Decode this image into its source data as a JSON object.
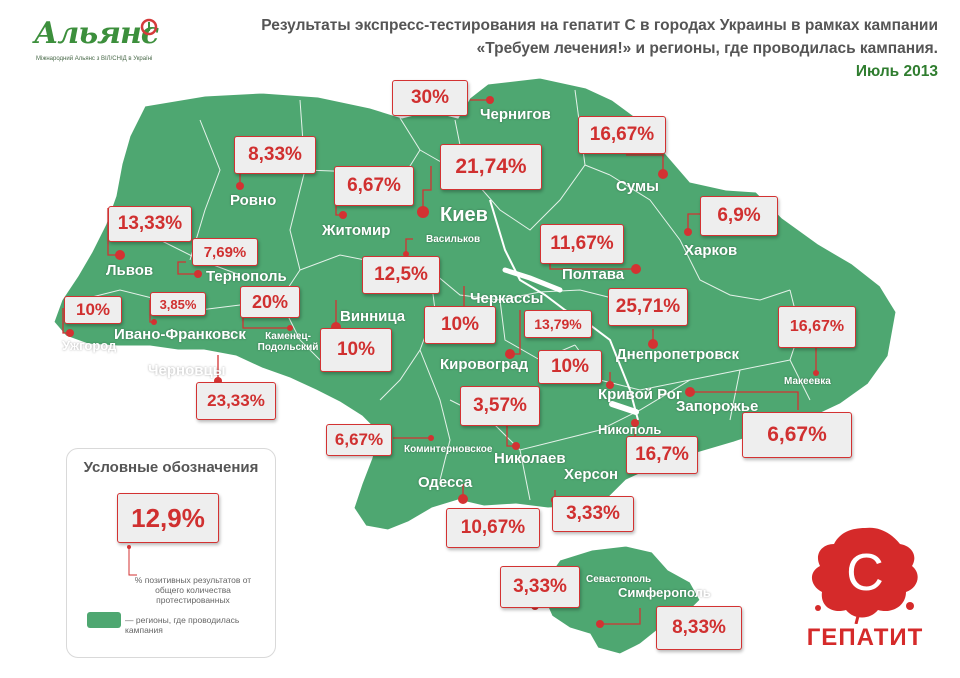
{
  "logo": {
    "name": "Альянс",
    "subtitle": "Міжнародний Альянс з ВІЛ/СНІД в Україні"
  },
  "header": {
    "line1": "Результаты экспресс-тестирования на гепатит С в городах Украины в рамках кампании",
    "line2": "«Требуем лечения!» и регионы, где проводилась кампания.",
    "line3": "Июль 2013"
  },
  "colors": {
    "region_fill": "#4ea771",
    "accent_red": "#d33232",
    "label_box": "#eeeeee",
    "header_green": "#2f7d2f"
  },
  "cities": {
    "chernigov": {
      "name": "Чернигов",
      "value": "30%"
    },
    "sumy": {
      "name": "Сумы",
      "value": "16,67%"
    },
    "rovno": {
      "name": "Ровно",
      "value": "8,33%"
    },
    "zhitomir": {
      "name": "Житомир",
      "value": "6,67%"
    },
    "kiev": {
      "name": "Киев",
      "value": "21,74%"
    },
    "kharkov": {
      "name": "Харков",
      "value": "6,9%"
    },
    "lvov": {
      "name": "Львов",
      "value": "13,33%"
    },
    "ternopol": {
      "name": "Тернополь",
      "value": "7,69%"
    },
    "vasilkov": {
      "name": "Васильков",
      "value": "12,5%"
    },
    "poltava": {
      "name": "Полтава",
      "value": "11,67%"
    },
    "uzhgorod": {
      "name": "Ужгород",
      "value": "10%"
    },
    "ivano": {
      "name": "Ивано-Франковск",
      "value": "3,85%"
    },
    "kamenets": {
      "name": "Каменец-Подольский",
      "value": "20%"
    },
    "vinnitsa": {
      "name": "Винница",
      "value": "10%"
    },
    "cherkassy": {
      "name": "Черкассы",
      "value": "10%"
    },
    "kirovograd": {
      "name": "Кировоград",
      "value": "13,79%"
    },
    "dnepr": {
      "name": "Днепропетровск",
      "value": "25,71%"
    },
    "makeevka": {
      "name": "Макеевка",
      "value": "16,67%"
    },
    "chernovtsy": {
      "name": "Черновцы",
      "value": "23,33%"
    },
    "krivoy": {
      "name": "Кривой Рог",
      "value": "10%"
    },
    "zaporozhe": {
      "name": "Запорожье",
      "value": "6,67%"
    },
    "kominternovskoe": {
      "name": "Коминтерновское",
      "value": "6,67%"
    },
    "nikolaev": {
      "name": "Николаев",
      "value": "3,57%"
    },
    "nikopol": {
      "name": "Никополь",
      "value": "16,7%"
    },
    "herson": {
      "name": "Херсон",
      "value": "3,33%"
    },
    "odessa": {
      "name": "Одесса",
      "value": "10,67%"
    },
    "sevastopol": {
      "name": "Севастополь",
      "value": "3,33%"
    },
    "simferopol": {
      "name": "Симферополь",
      "value": "8,33%"
    }
  },
  "legend": {
    "title": "Условные обозначения",
    "sample_value": "12,9%",
    "value_desc": "% позитивных результатов от общего количества протестированных",
    "region_desc": "— регионы, где проводилась кампания"
  },
  "brand": {
    "letter": "С",
    "word": "ГЕПАТИТ"
  }
}
